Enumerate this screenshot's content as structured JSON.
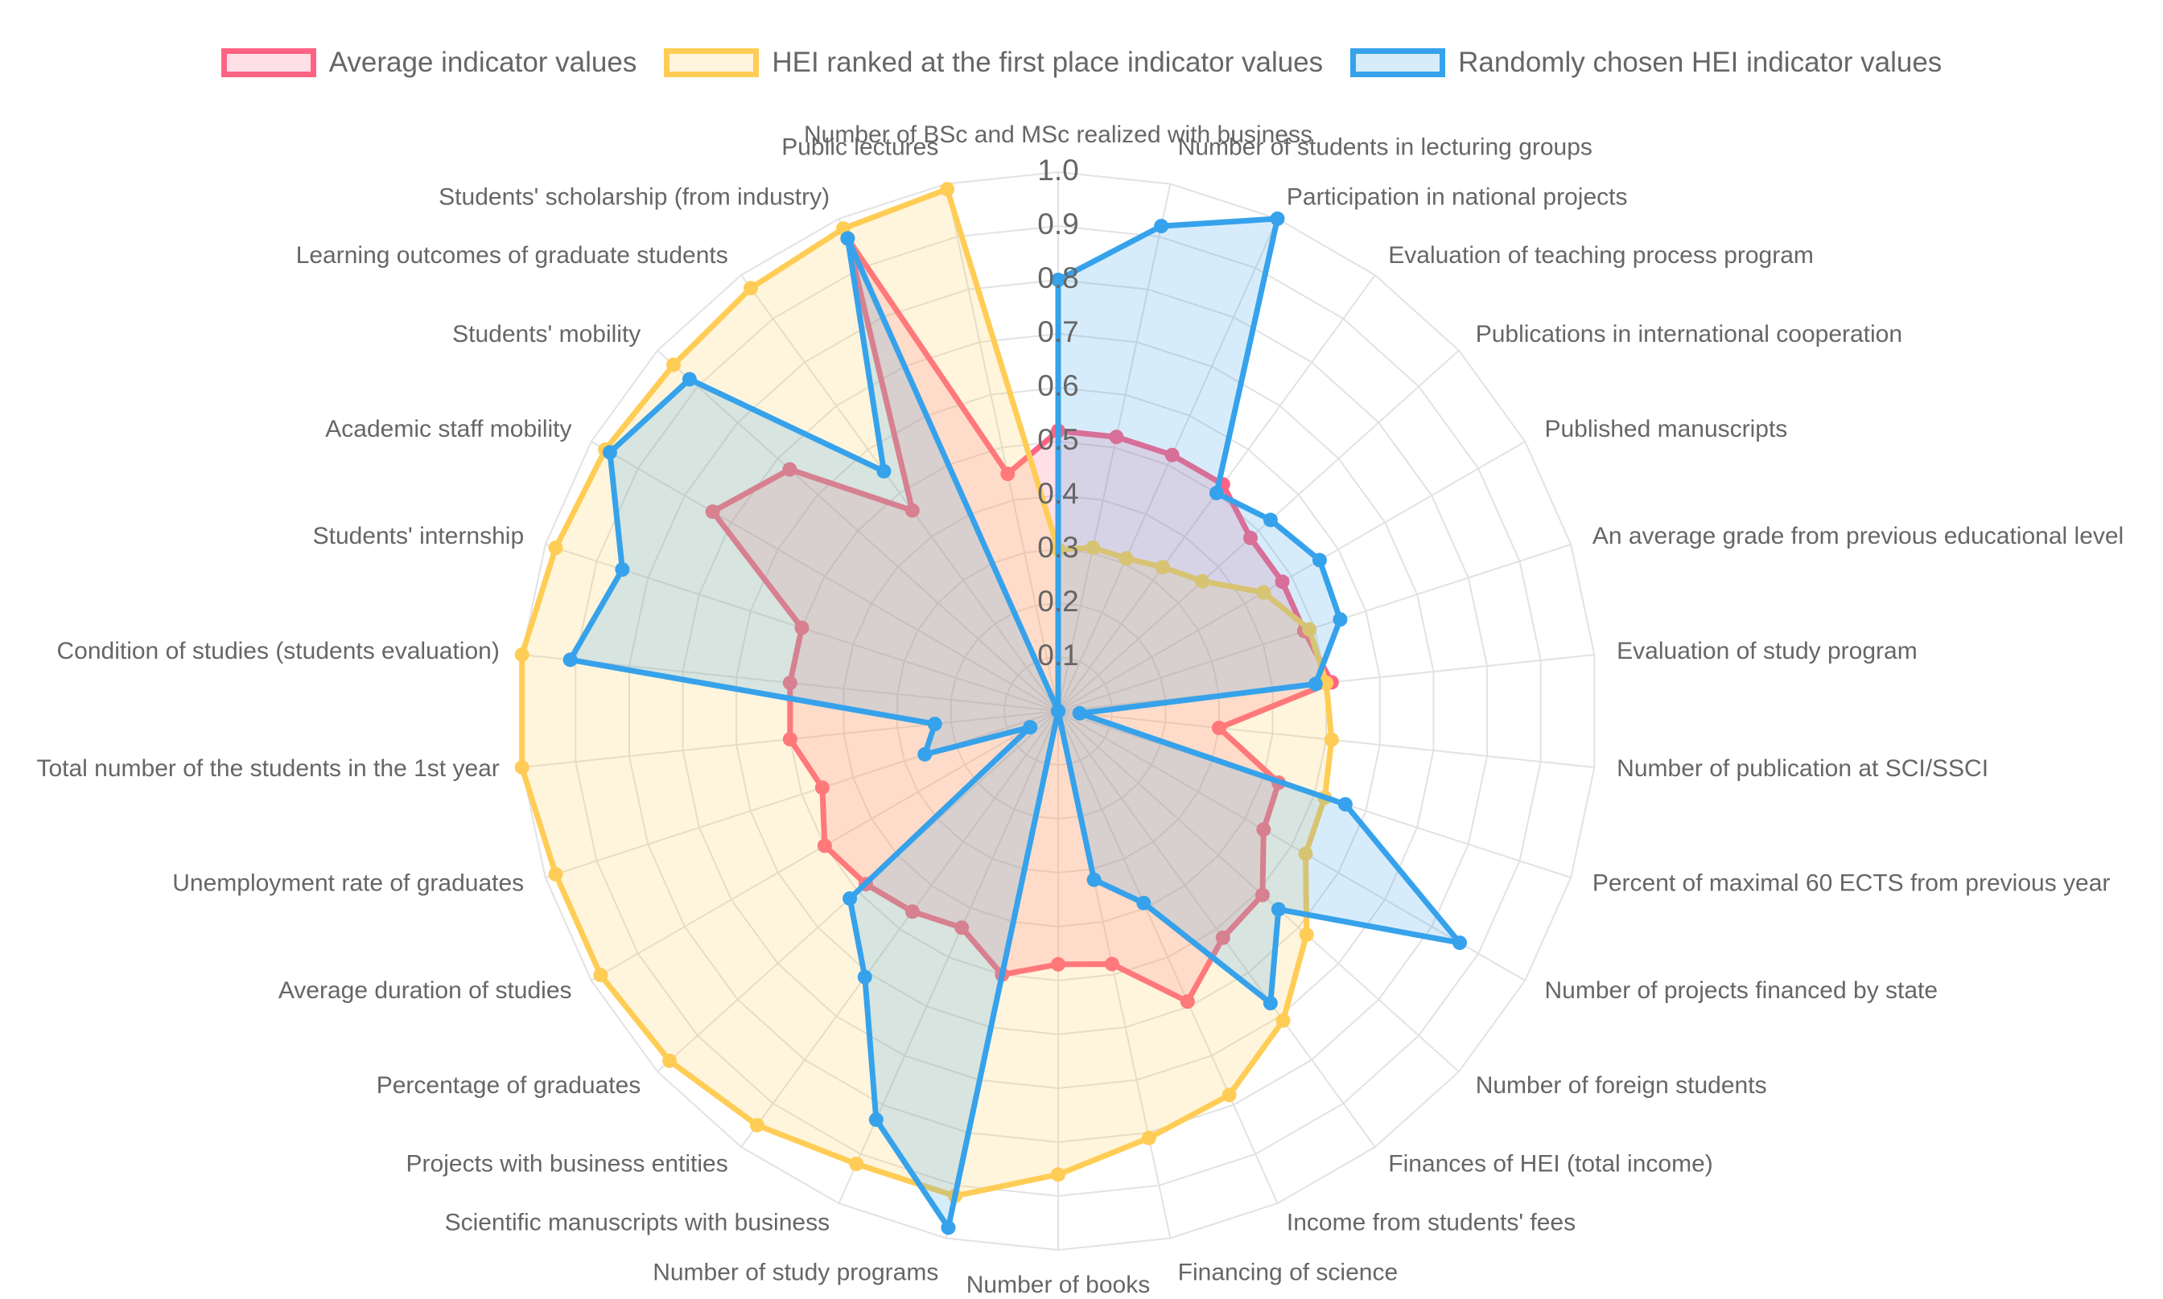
{
  "chart_data": {
    "type": "radar",
    "title": "",
    "rlim": [
      0,
      1.0
    ],
    "ticks": [
      "0.1",
      "0.2",
      "0.3",
      "0.4",
      "0.5",
      "0.6",
      "0.7",
      "0.8",
      "0.9",
      "1.0"
    ],
    "grid": true,
    "legend_position": "top",
    "categories": [
      "Number of BSc and MSc realized with business",
      "Number of students in lecturing groups",
      "Participation in national projects",
      "Evaluation of teaching process program",
      "Publications in international cooperation",
      "Published manuscripts",
      "An average grade from previous educational level",
      "Evaluation of study program",
      "Number of publication at SCI/SSCI",
      "Percent of maximal 60 ECTS from previous year",
      "Number of projects financed by state",
      "Number of foreign students",
      "Finances of HEI (total income)",
      "Income from students' fees",
      "Financing of science",
      "Number of books",
      "Number of study programs",
      "Scientific manuscripts with business",
      "Projects with business entities",
      "Percentage of graduates",
      "Average duration of studies",
      "Unemployment rate of graduates",
      "Total number of the students in the 1st year",
      "Condition of studies (students evaluation)",
      "Students' internship",
      "Academic staff mobility",
      "Students' mobility",
      "Learning outcomes of graduate students",
      "Students' scholarship (from industry)",
      "Public lectures"
    ],
    "series": [
      {
        "name": "Average indicator values",
        "border": "#ff6384",
        "fill": "rgba(255, 99, 132, 0.2)",
        "values": [
          0.52,
          0.52,
          0.52,
          0.52,
          0.48,
          0.48,
          0.48,
          0.51,
          0.3,
          0.43,
          0.44,
          0.51,
          0.52,
          0.59,
          0.48,
          0.47,
          0.5,
          0.44,
          0.46,
          0.48,
          0.5,
          0.46,
          0.5,
          0.5,
          0.5,
          0.74,
          0.67,
          0.46,
          0.96,
          0.45
        ]
      },
      {
        "name": "HEI ranked at the first place indicator values",
        "border": "#ffcd56",
        "fill": "rgba(255, 205, 86, 0.2)",
        "values": [
          0.3,
          0.31,
          0.31,
          0.33,
          0.36,
          0.44,
          0.49,
          0.5,
          0.51,
          0.52,
          0.53,
          0.62,
          0.71,
          0.78,
          0.81,
          0.86,
          0.92,
          0.92,
          0.95,
          0.97,
          0.98,
          0.98,
          1.0,
          1.0,
          0.98,
          0.97,
          0.96,
          0.97,
          0.98,
          0.99
        ]
      },
      {
        "name": "Randomly chosen HEI indicator values",
        "border": "#36a2eb",
        "fill": "rgba(54, 162, 235, 0.2)",
        "values": [
          0.8,
          0.92,
          1.0,
          0.5,
          0.53,
          0.56,
          0.55,
          0.48,
          0.04,
          0.56,
          0.86,
          0.55,
          0.67,
          0.39,
          0.32,
          0.0,
          0.98,
          0.83,
          0.61,
          0.52,
          0.06,
          0.26,
          0.23,
          0.91,
          0.85,
          0.96,
          0.92,
          0.55,
          0.96,
          0.0
        ]
      }
    ]
  }
}
